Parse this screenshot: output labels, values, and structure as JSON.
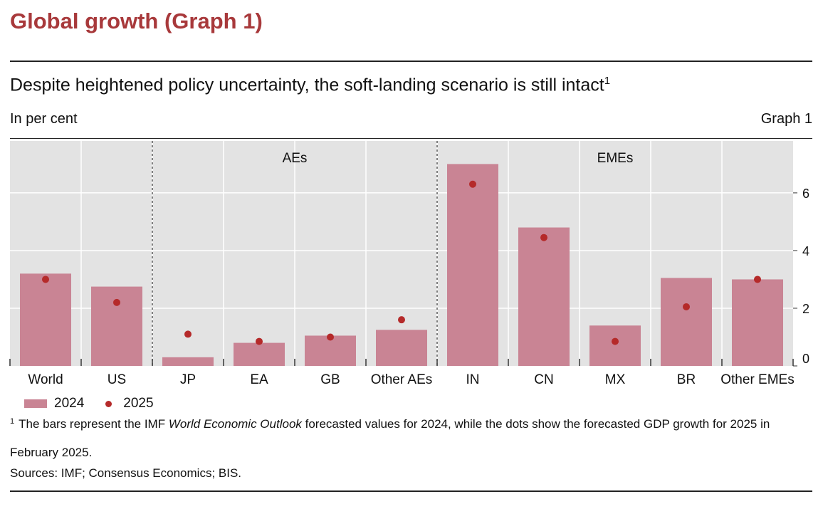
{
  "header": {
    "page_title": "Global growth (Graph 1)",
    "chart_title": "Despite heightened policy uncertainty, the soft-landing scenario is still intact",
    "title_footnote_mark": "1",
    "unit_label": "In per cent",
    "graph_number": "Graph 1"
  },
  "chart_data": {
    "type": "bar",
    "title": "Despite heightened policy uncertainty, the soft-landing scenario is still intact",
    "ylabel": "In per cent",
    "xlabel": "",
    "categories": [
      "World",
      "US",
      "JP",
      "EA",
      "GB",
      "Other AEs",
      "IN",
      "CN",
      "MX",
      "BR",
      "Other EMEs"
    ],
    "series": [
      {
        "name": "2024",
        "kind": "bar",
        "color": "#c98494",
        "values": [
          3.2,
          2.75,
          0.3,
          0.8,
          1.05,
          1.25,
          7.0,
          4.8,
          1.4,
          3.05,
          3.0
        ]
      },
      {
        "name": "2025",
        "kind": "dot",
        "color": "#b52a2a",
        "values": [
          3.0,
          2.2,
          1.1,
          0.85,
          1.0,
          1.6,
          6.3,
          4.45,
          0.85,
          2.05,
          3.0
        ]
      }
    ],
    "groups": [
      {
        "label": "AEs",
        "from": 2,
        "to": 5
      },
      {
        "label": "EMEs",
        "from": 6,
        "to": 10
      }
    ],
    "ylim": [
      0,
      7.8
    ],
    "yticks": [
      0,
      2,
      4,
      6
    ],
    "y_axis_side": "right",
    "grid": true,
    "legend_position": "bottom-left"
  },
  "footnote": {
    "mark": "1",
    "text_before": "The bars represent the IMF ",
    "text_italic": "World Economic Outlook",
    "text_after": " forecasted values for 2024, while the dots show the forecasted GDP growth for 2025 in February 2025."
  },
  "sources": "Sources: IMF; Consensus Economics; BIS."
}
